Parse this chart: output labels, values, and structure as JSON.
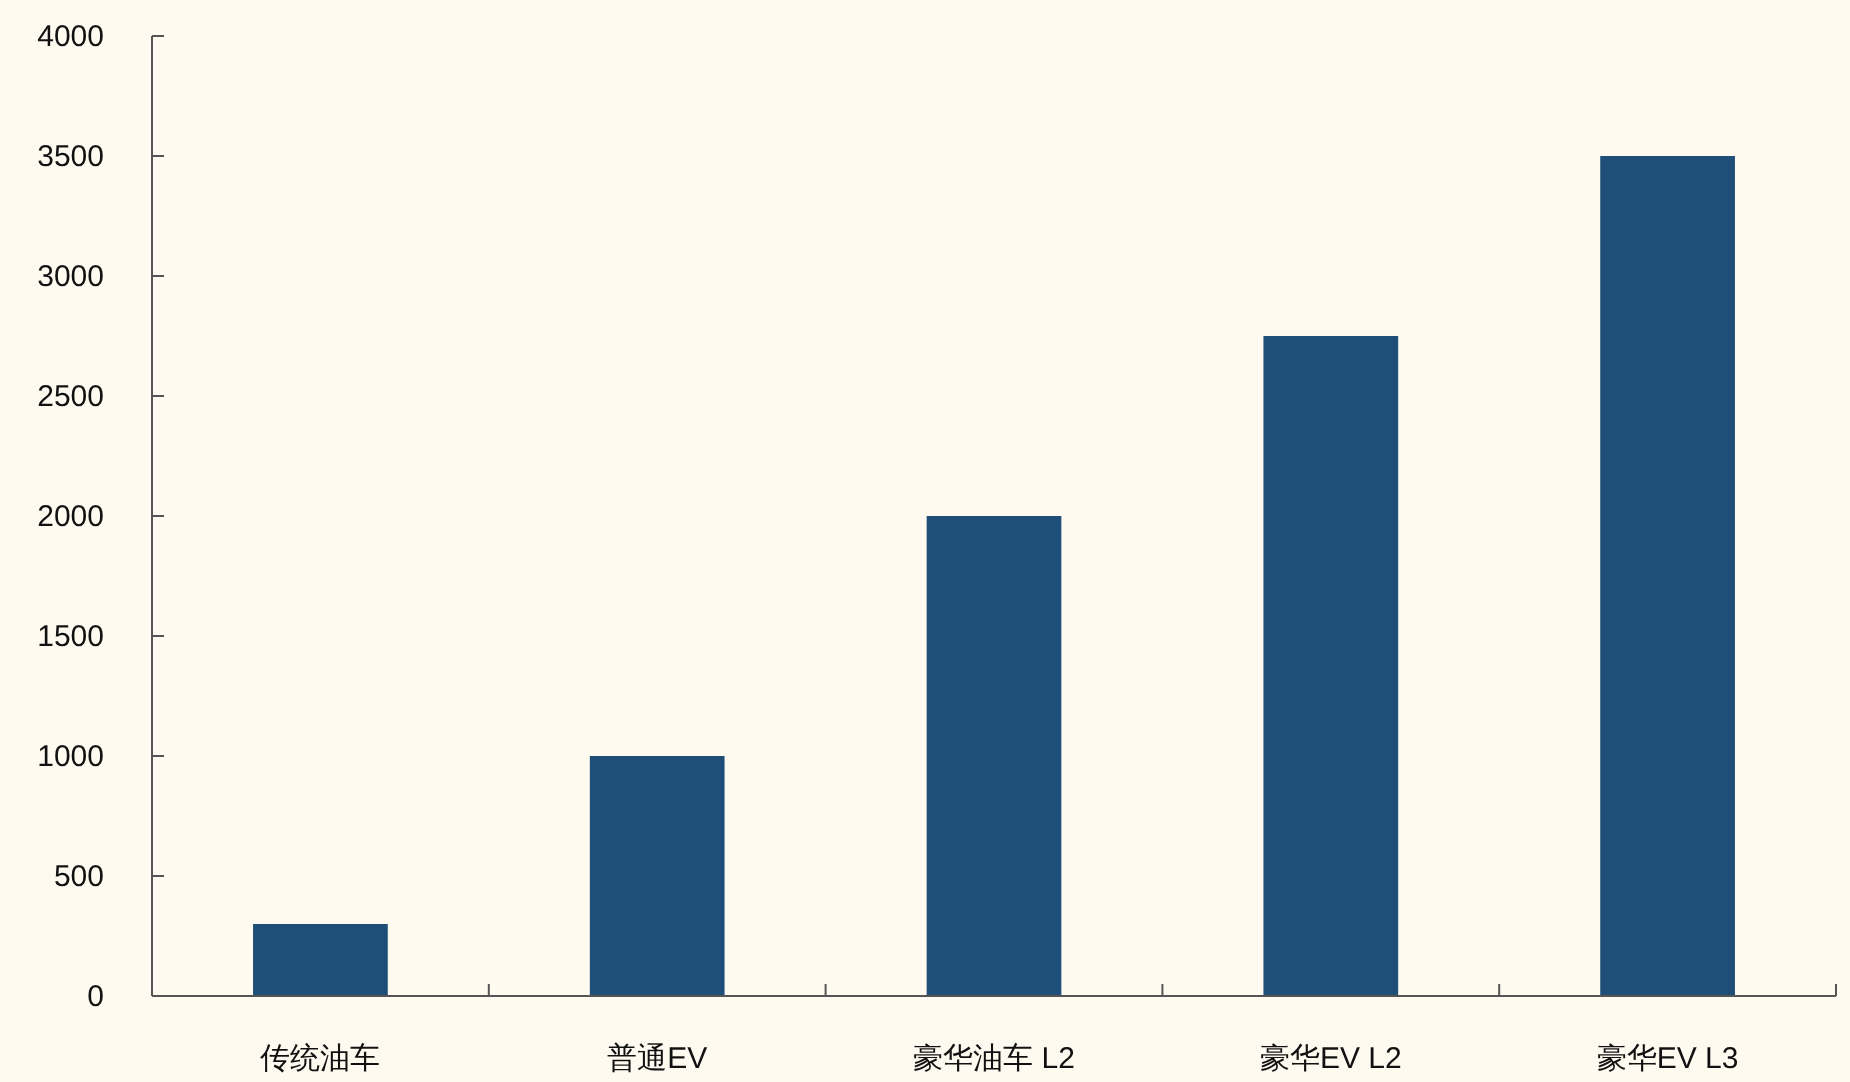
{
  "chart_data": {
    "type": "bar",
    "categories": [
      "传统油车",
      "普通EV",
      "豪华油车 L2",
      "豪华EV L2",
      "豪华EV L3"
    ],
    "values": [
      300,
      1000,
      2000,
      2750,
      3500
    ],
    "color": "#1f4e79",
    "ylim": [
      0,
      4000
    ],
    "yticks": [
      0,
      500,
      1000,
      1500,
      2000,
      2500,
      3000,
      3500,
      4000
    ]
  }
}
